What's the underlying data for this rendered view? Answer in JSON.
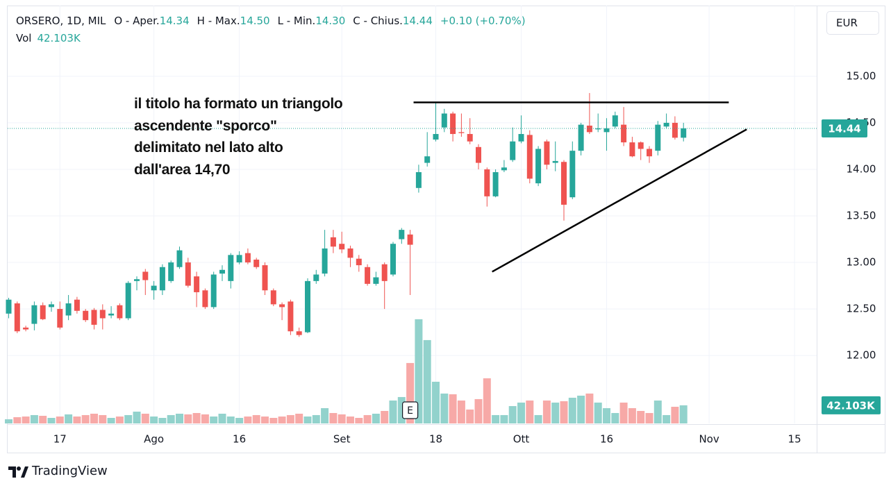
{
  "chart_data": {
    "type": "candlestick",
    "title": "ORSERO, 1D, MIL",
    "legend": {
      "fields": [
        {
          "name": "O - Aper.",
          "value": "14.34"
        },
        {
          "name": "H - Max.",
          "value": "14.50"
        },
        {
          "name": "L - Min.",
          "value": "14.30"
        },
        {
          "name": "C - Chius.",
          "value": "14.44"
        }
      ],
      "change": "+0.10 (+0.70%)",
      "volume_name": "Vol",
      "volume": "42.103K"
    },
    "currency": "EUR",
    "annotation": [
      "il titolo ha formato un triangolo",
      "ascendente \"sporco\"",
      "delimitato nel lato alto",
      "dall'area 14,70"
    ],
    "trendlines": [
      {
        "x": [
          47.4,
          84.3
        ],
        "y": [
          14.72,
          14.72
        ]
      },
      {
        "x": [
          56.6,
          86.4
        ],
        "y": [
          12.9,
          14.43
        ]
      }
    ],
    "events": [
      {
        "label": "E",
        "index": 47
      }
    ],
    "categories": [
      null,
      null,
      null,
      null,
      null,
      null,
      "17",
      null,
      null,
      null,
      null,
      null,
      null,
      null,
      null,
      null,
      null,
      "Ago",
      null,
      null,
      null,
      null,
      null,
      null,
      null,
      null,
      null,
      "16",
      null,
      null,
      null,
      null,
      null,
      null,
      null,
      null,
      null,
      null,
      null,
      "Set",
      null,
      null,
      null,
      null,
      null,
      null,
      null,
      null,
      null,
      null,
      "18",
      null,
      null,
      null,
      null,
      null,
      null,
      null,
      null,
      null,
      "Ott",
      null,
      null,
      null,
      null,
      null,
      null,
      null,
      null,
      null,
      "16",
      null,
      null,
      null,
      null,
      null,
      null,
      null,
      null,
      null,
      null,
      null,
      "Nov",
      null,
      null,
      null,
      null,
      null,
      null,
      null,
      null,
      null,
      "15",
      null,
      null
    ],
    "open": [
      12.45,
      12.56,
      12.3,
      12.34,
      12.54,
      12.52,
      12.5,
      12.43,
      12.6,
      12.48,
      12.49,
      12.49,
      12.43,
      12.54,
      12.4,
      12.8,
      12.9,
      12.7,
      12.7,
      12.8,
      12.95,
      13.0,
      12.85,
      12.7,
      12.52,
      12.88,
      12.8,
      13.0,
      13.1,
      13.03,
      12.97,
      12.7,
      12.55,
      12.58,
      12.26,
      12.25,
      12.8,
      12.88,
      13.27,
      13.2,
      13.15,
      13.04,
      12.95,
      12.77,
      12.98,
      12.87,
      13.25,
      13.3,
      13.8,
      14.07,
      14.32,
      14.45,
      14.6,
      14.4,
      14.38,
      14.24,
      14.0,
      13.71,
      13.99,
      14.1,
      14.3,
      14.37,
      13.85,
      14.3,
      14.07,
      14.08,
      13.7,
      14.2,
      14.47,
      14.43,
      14.4,
      14.46,
      14.48,
      14.29,
      14.29,
      14.22,
      14.2,
      14.46,
      14.5,
      14.34,
      null,
      null,
      null,
      null,
      null,
      null,
      null,
      null,
      null,
      null,
      null,
      null,
      null,
      null,
      null
    ],
    "high": [
      12.62,
      12.58,
      12.32,
      12.58,
      12.57,
      12.58,
      12.58,
      12.65,
      12.63,
      12.5,
      12.51,
      12.55,
      12.53,
      12.56,
      12.8,
      12.85,
      12.93,
      12.8,
      12.98,
      13.02,
      13.17,
      13.05,
      12.9,
      12.72,
      12.9,
      12.97,
      13.1,
      13.12,
      13.15,
      13.05,
      13.0,
      12.72,
      12.57,
      12.6,
      12.3,
      12.83,
      12.92,
      13.35,
      13.35,
      13.33,
      13.18,
      13.08,
      12.98,
      12.9,
      13.0,
      13.22,
      13.37,
      13.35,
      14.05,
      14.4,
      14.72,
      14.65,
      14.62,
      14.6,
      14.55,
      14.27,
      14.02,
      14.0,
      14.1,
      14.45,
      14.58,
      14.42,
      14.25,
      14.32,
      14.3,
      14.1,
      14.3,
      14.5,
      14.82,
      14.6,
      14.55,
      14.62,
      14.67,
      14.35,
      14.3,
      14.25,
      14.52,
      14.6,
      14.57,
      14.5,
      null,
      null,
      null,
      null,
      null,
      null,
      null,
      null,
      null,
      null,
      null,
      null,
      null,
      null,
      null
    ],
    "low": [
      12.4,
      12.24,
      12.26,
      12.27,
      12.38,
      12.47,
      12.28,
      12.38,
      12.45,
      12.36,
      12.28,
      12.28,
      12.4,
      12.38,
      12.38,
      12.7,
      12.65,
      12.6,
      12.65,
      12.78,
      12.93,
      12.73,
      12.52,
      12.5,
      12.5,
      12.8,
      12.72,
      12.98,
      12.98,
      12.93,
      12.65,
      12.53,
      12.38,
      12.22,
      12.2,
      12.24,
      12.77,
      12.85,
      13.1,
      13.1,
      12.95,
      12.9,
      12.75,
      12.75,
      12.5,
      12.85,
      13.2,
      12.65,
      13.75,
      14.03,
      14.3,
      14.4,
      14.3,
      14.35,
      14.27,
      14.0,
      13.6,
      13.7,
      13.97,
      14.08,
      14.28,
      13.85,
      13.82,
      14.0,
      13.98,
      13.45,
      13.68,
      14.15,
      14.38,
      14.4,
      14.2,
      14.44,
      14.25,
      14.13,
      14.1,
      14.07,
      14.15,
      14.44,
      14.32,
      14.3,
      null,
      null,
      null,
      null,
      null,
      null,
      null,
      null,
      null,
      null,
      null,
      null,
      null,
      null,
      null
    ],
    "close": [
      12.6,
      12.26,
      12.28,
      12.54,
      12.39,
      12.55,
      12.3,
      12.56,
      12.48,
      12.38,
      12.33,
      12.4,
      12.45,
      12.4,
      12.78,
      12.82,
      12.81,
      12.75,
      12.95,
      13.0,
      13.13,
      12.75,
      12.68,
      12.52,
      12.87,
      12.92,
      13.08,
      13.08,
      13.0,
      12.95,
      12.7,
      12.55,
      12.52,
      12.26,
      12.22,
      12.8,
      12.87,
      13.15,
      13.17,
      13.14,
      13.05,
      12.97,
      12.77,
      12.84,
      12.8,
      13.2,
      13.35,
      13.19,
      13.97,
      14.14,
      14.38,
      14.6,
      14.38,
      14.39,
      14.3,
      14.07,
      13.71,
      13.97,
      14.02,
      14.3,
      14.38,
      13.9,
      14.22,
      14.05,
      14.09,
      13.62,
      14.2,
      14.48,
      14.4,
      14.44,
      14.44,
      14.58,
      14.29,
      14.14,
      14.22,
      14.14,
      14.48,
      14.5,
      14.34,
      14.44,
      null,
      null,
      null,
      null,
      null,
      null,
      null,
      null,
      null,
      null,
      null,
      null,
      null,
      null,
      null
    ],
    "volume": [
      9.7,
      14.5,
      16.1,
      19.4,
      17.7,
      12.9,
      16.1,
      21,
      16.1,
      19.4,
      22.6,
      19.4,
      12.9,
      16.1,
      19.4,
      27.4,
      22.6,
      16.1,
      12.9,
      19.4,
      22.6,
      21,
      24.2,
      21,
      16.1,
      22.6,
      16.1,
      12.9,
      16.1,
      19.4,
      16.1,
      12.9,
      16.1,
      19.4,
      22.6,
      16.1,
      19.4,
      35.5,
      24.2,
      21,
      16.1,
      12.9,
      19.4,
      22.6,
      29,
      53.2,
      61.3,
      140.3,
      241.9,
      193.5,
      96.8,
      69.4,
      67.7,
      53.2,
      32.3,
      56.5,
      104.8,
      19.4,
      19.4,
      40.3,
      48.4,
      53.2,
      19.4,
      53.2,
      48.4,
      51.6,
      59.7,
      64.5,
      69.4,
      48.4,
      35.5,
      24.2,
      48.4,
      35.5,
      29,
      24.2,
      53.2,
      19.4,
      38.7,
      42.103,
      null,
      null,
      null,
      null,
      null,
      null,
      null,
      null,
      null,
      null,
      null,
      null,
      null,
      null,
      null
    ],
    "last_volume_label": "42.103K",
    "ylim": [
      11.27,
      15.76
    ],
    "yticks": [
      {
        "value": 12,
        "label": "12.00"
      },
      {
        "value": 12.5,
        "label": "12.50"
      },
      {
        "value": 13,
        "label": "13.00"
      },
      {
        "value": 13.5,
        "label": "13.50"
      },
      {
        "value": 14,
        "label": "14.00"
      },
      {
        "value": 14.5,
        "label": "14.50"
      },
      {
        "value": 15,
        "label": "15.00"
      }
    ],
    "vlim": [
      0,
      970
    ],
    "grid": true,
    "colors": {
      "up": "#26a69a",
      "down": "#ef5350",
      "volume_up": "#92d2cc",
      "volume_down": "#f7a9a7"
    }
  },
  "brand": "TradingView"
}
